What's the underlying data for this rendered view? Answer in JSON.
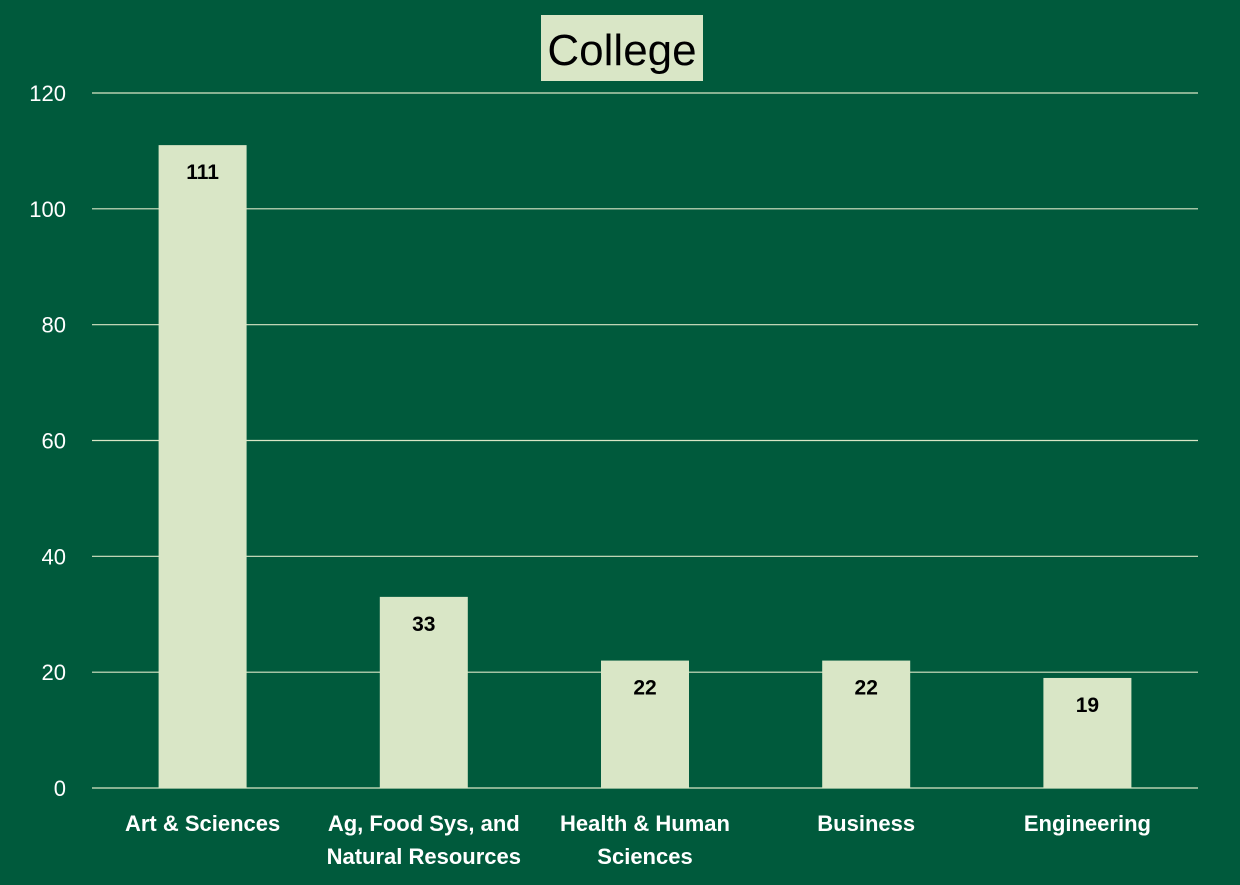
{
  "chart_data": {
    "type": "bar",
    "title": "College",
    "categories": [
      [
        "Art & Sciences"
      ],
      [
        "Ag, Food Sys, and",
        "Natural Resources"
      ],
      [
        "Health & Human",
        "Sciences"
      ],
      [
        "Business"
      ],
      [
        "Engineering"
      ]
    ],
    "values": [
      111,
      33,
      22,
      22,
      19
    ],
    "data_labels": [
      "111",
      "33",
      "22",
      "22",
      "19"
    ],
    "xlabel": "",
    "ylabel": "",
    "ylim": [
      0,
      120
    ],
    "yticks": [
      0,
      20,
      40,
      60,
      80,
      100,
      120
    ],
    "grid": true,
    "legend": "none",
    "colors": {
      "background": "#005a3c",
      "bar": "#d9e6c6",
      "title_background": "#d9e6c6",
      "gridline": "#d9e6c6"
    }
  }
}
